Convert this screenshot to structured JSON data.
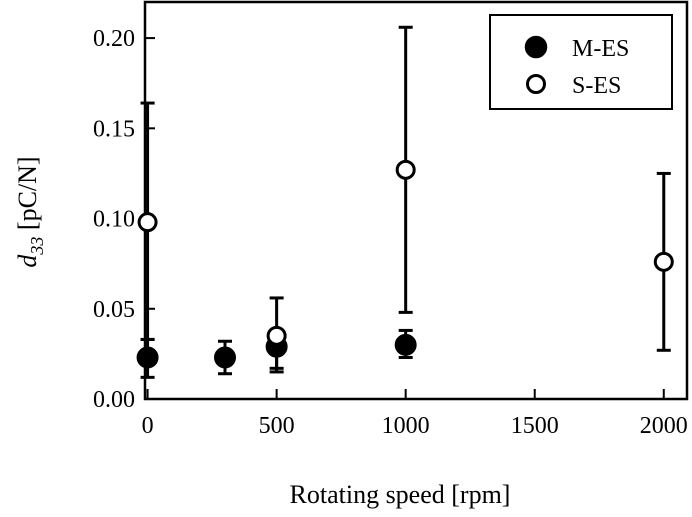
{
  "chart_data": {
    "type": "scatter",
    "title": "",
    "xlabel": "Rotating speed [rpm]",
    "ylabel": {
      "symbol": "d",
      "subscript": "33",
      "unit": " [pC/N]"
    },
    "xlim": [
      -10,
      2090
    ],
    "ylim": [
      0.0,
      0.22
    ],
    "xticks": [
      0,
      500,
      1000,
      1500,
      2000
    ],
    "xtick_labels": [
      "0",
      "500",
      "1000",
      "1500",
      "2000"
    ],
    "yticks": [
      0.0,
      0.05,
      0.1,
      0.15,
      0.2
    ],
    "ytick_labels": [
      "0.00",
      "0.05",
      "0.10",
      "0.15",
      "0.20"
    ],
    "grid": false,
    "legend_position": "top-right",
    "series": [
      {
        "name": "M-ES",
        "marker": "filled-circle",
        "color": "#000000",
        "points": [
          {
            "x": 0,
            "y": 0.023,
            "err_low": 0.012,
            "err_high": 0.033
          },
          {
            "x": 300,
            "y": 0.023,
            "err_low": 0.014,
            "err_high": 0.032
          },
          {
            "x": 500,
            "y": 0.029,
            "err_low": 0.015,
            "err_high": 0.036
          },
          {
            "x": 1000,
            "y": 0.03,
            "err_low": 0.023,
            "err_high": 0.038
          }
        ]
      },
      {
        "name": "S-ES",
        "marker": "open-circle",
        "color": "#000000",
        "points": [
          {
            "x": 0,
            "y": 0.098,
            "err_low": 0.033,
            "err_high": 0.164
          },
          {
            "x": 500,
            "y": 0.035,
            "err_low": 0.017,
            "err_high": 0.056
          },
          {
            "x": 1000,
            "y": 0.127,
            "err_low": 0.048,
            "err_high": 0.206
          },
          {
            "x": 2000,
            "y": 0.076,
            "err_low": 0.027,
            "err_high": 0.125
          }
        ]
      }
    ]
  }
}
